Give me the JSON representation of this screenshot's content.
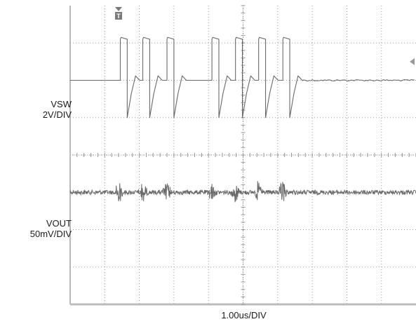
{
  "chart_data": {
    "type": "line",
    "title": "",
    "grid": true,
    "divisions": {
      "x": 10,
      "y": 8
    },
    "subdivisions_per_division": 5,
    "x_range_div": [
      0,
      10
    ],
    "time_scale_label": "1.00us/DIV",
    "trigger_marker": {
      "label": "T",
      "x_div": 1.4
    },
    "level_marker": {
      "channel": "VSW",
      "y_div": 1.5
    },
    "trace_color": "#6a6a6a",
    "grid_color": "#9a9a9a",
    "series": [
      {
        "name": "VSW",
        "scale_label": "2V/DIV",
        "baseline_div": 2.0,
        "high_div": 0.9,
        "low_div": 3.0,
        "pulses": [
          {
            "start_div": 1.45,
            "width_div": 0.2
          },
          {
            "start_div": 2.1,
            "width_div": 0.2
          },
          {
            "start_div": 2.8,
            "width_div": 0.2
          },
          {
            "start_div": 4.1,
            "width_div": 0.2
          },
          {
            "start_div": 4.78,
            "width_div": 0.2
          },
          {
            "start_div": 5.45,
            "width_div": 0.2
          },
          {
            "start_div": 6.15,
            "width_div": 0.2
          }
        ]
      },
      {
        "name": "VOUT",
        "scale_label": "50mV/DIV",
        "baseline_div": 5.0,
        "noise_div": 0.06,
        "spike_x_div": [
          1.4,
          2.1,
          2.8,
          4.1,
          4.78,
          5.45,
          6.15
        ],
        "spike_amplitude_div": 0.3
      }
    ]
  }
}
